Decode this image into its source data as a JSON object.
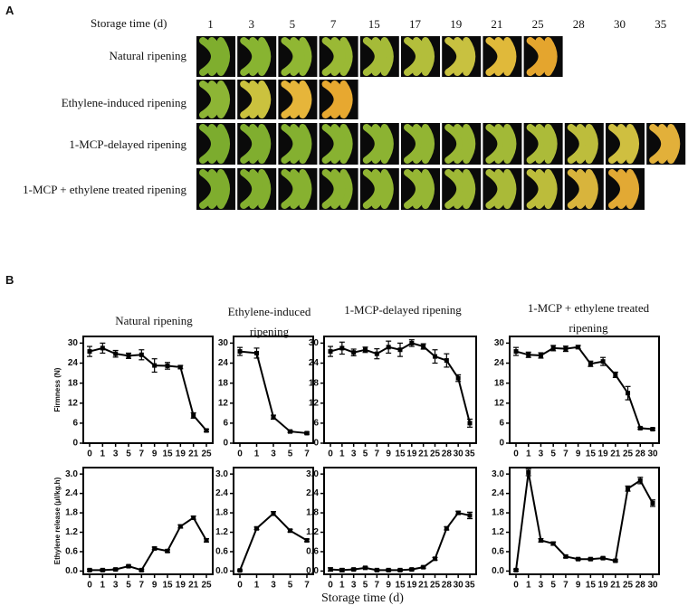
{
  "panel_a": {
    "label": "A",
    "header": "Storage time (d)",
    "days": [
      1,
      3,
      5,
      7,
      15,
      17,
      19,
      21,
      25,
      28,
      30,
      35
    ],
    "rows": [
      "Natural ripening",
      "Ethylene-induced ripening",
      "1-MCP-delayed ripening",
      "1-MCP + ethylene treated ripening"
    ]
  },
  "panel_b": {
    "label": "B",
    "xlabel": "Storage time (d)"
  },
  "chart_data": [
    {
      "type": "line",
      "title": "Natural ripening",
      "ylabel": "Firmness (N)",
      "categories": [
        "0",
        "1",
        "3",
        "5",
        "7",
        "9",
        "15",
        "19",
        "21",
        "25"
      ],
      "values": [
        27.5,
        28.5,
        26.8,
        26.2,
        26.5,
        23.3,
        23.2,
        22.8,
        8.3,
        3.8
      ],
      "errors": [
        1.5,
        1.5,
        1,
        0.8,
        1.5,
        2,
        1,
        0.5,
        0.8,
        0.4
      ],
      "ylim": [
        0,
        32
      ],
      "yticks": [
        0,
        6,
        12,
        18,
        24,
        30
      ],
      "color": "#000000"
    },
    {
      "type": "line",
      "title": "Ethylene-induced ripening",
      "categories": [
        "0",
        "1",
        "3",
        "5",
        "7"
      ],
      "values": [
        27.5,
        27,
        7.8,
        3.5,
        3
      ],
      "errors": [
        1.2,
        1.5,
        0.6,
        0.3,
        0.3
      ],
      "ylim": [
        0,
        32
      ],
      "yticks": [
        0,
        6,
        12,
        18,
        24,
        30
      ],
      "color": "#000000"
    },
    {
      "type": "line",
      "title": "1-MCP-delayed ripening",
      "categories": [
        "0",
        "1",
        "3",
        "5",
        "7",
        "9",
        "15",
        "19",
        "21",
        "25",
        "28",
        "30",
        "35"
      ],
      "values": [
        27.5,
        28.5,
        27.2,
        28,
        26.8,
        28.8,
        28,
        30,
        29,
        26,
        24.8,
        19.5,
        6
      ],
      "errors": [
        1.5,
        1.8,
        1,
        0.8,
        1.5,
        1.8,
        2,
        1,
        0.8,
        2,
        2,
        1,
        1.2
      ],
      "ylim": [
        0,
        32
      ],
      "yticks": [
        0,
        6,
        12,
        18,
        24,
        30
      ],
      "color": "#000000"
    },
    {
      "type": "line",
      "title": "1-MCP + ethylene treated ripening",
      "categories": [
        "0",
        "1",
        "3",
        "5",
        "7",
        "9",
        "15",
        "19",
        "21",
        "25",
        "28",
        "30"
      ],
      "values": [
        27.5,
        26.5,
        26.3,
        28.5,
        28.3,
        28.8,
        23.8,
        24.5,
        20.5,
        15,
        4.5,
        4.2
      ],
      "errors": [
        1.2,
        0.8,
        0.8,
        0.8,
        0.8,
        0.5,
        0.8,
        1.2,
        0.8,
        2,
        0.3,
        0.3
      ],
      "ylim": [
        0,
        32
      ],
      "yticks": [
        0,
        6,
        12,
        18,
        24,
        30
      ],
      "color": "#000000"
    },
    {
      "type": "line",
      "ylabel": "Ethylene release (μl/kg.h)",
      "categories": [
        "0",
        "1",
        "3",
        "5",
        "7",
        "9",
        "15",
        "19",
        "21",
        "25"
      ],
      "values": [
        0.03,
        0.03,
        0.05,
        0.15,
        0.03,
        0.7,
        0.62,
        1.38,
        1.65,
        0.95
      ],
      "errors": [
        0.03,
        0.03,
        0.03,
        0.03,
        0.03,
        0.04,
        0.04,
        0.05,
        0.05,
        0.05
      ],
      "ylim": [
        -0.1,
        3.2
      ],
      "yticks": [
        {
          "value": 0,
          "label": "0.0"
        },
        0.6,
        1.2,
        1.8,
        2.4,
        {
          "value": 3,
          "label": "3.0"
        }
      ],
      "color": "#000000"
    },
    {
      "type": "line",
      "categories": [
        "0",
        "1",
        "3",
        "5",
        "7"
      ],
      "values": [
        0.02,
        1.32,
        1.78,
        1.25,
        0.95
      ],
      "errors": [
        0.02,
        0.04,
        0.06,
        0.04,
        0.04
      ],
      "ylim": [
        -0.1,
        3.2
      ],
      "yticks": [
        {
          "value": 0,
          "label": "0.0"
        },
        0.6,
        1.2,
        1.8,
        2.4,
        {
          "value": 3,
          "label": "3.0"
        }
      ],
      "color": "#000000"
    },
    {
      "type": "line",
      "categories": [
        "0",
        "1",
        "3",
        "5",
        "7",
        "9",
        "15",
        "19",
        "21",
        "25",
        "28",
        "30",
        "35"
      ],
      "values": [
        0.05,
        0.03,
        0.05,
        0.1,
        0.03,
        0.03,
        0.03,
        0.05,
        0.12,
        0.38,
        1.32,
        1.8,
        1.72
      ],
      "errors": [
        0.05,
        0.05,
        0.03,
        0.03,
        0.03,
        0.03,
        0.03,
        0.03,
        0.03,
        0.04,
        0.05,
        0.05,
        0.1
      ],
      "ylim": [
        -0.1,
        3.2
      ],
      "yticks": [
        {
          "value": 0,
          "label": "0.0"
        },
        0.6,
        1.2,
        1.8,
        2.4,
        {
          "value": 3,
          "label": "3.0"
        }
      ],
      "color": "#000000"
    },
    {
      "type": "line",
      "categories": [
        "0",
        "1",
        "3",
        "5",
        "7",
        "9",
        "15",
        "19",
        "21",
        "25",
        "28",
        "30"
      ],
      "values": [
        0.03,
        3.05,
        0.95,
        0.85,
        0.45,
        0.37,
        0.37,
        0.4,
        0.32,
        2.55,
        2.8,
        2.1
      ],
      "errors": [
        0.03,
        0.1,
        0.05,
        0.05,
        0.04,
        0.03,
        0.03,
        0.03,
        0.03,
        0.08,
        0.1,
        0.1
      ],
      "ylim": [
        -0.1,
        3.2
      ],
      "yticks": [
        {
          "value": 0,
          "label": "0.0"
        },
        0.6,
        1.2,
        1.8,
        2.4,
        {
          "value": 3,
          "label": "3.0"
        }
      ],
      "color": "#000000"
    }
  ]
}
